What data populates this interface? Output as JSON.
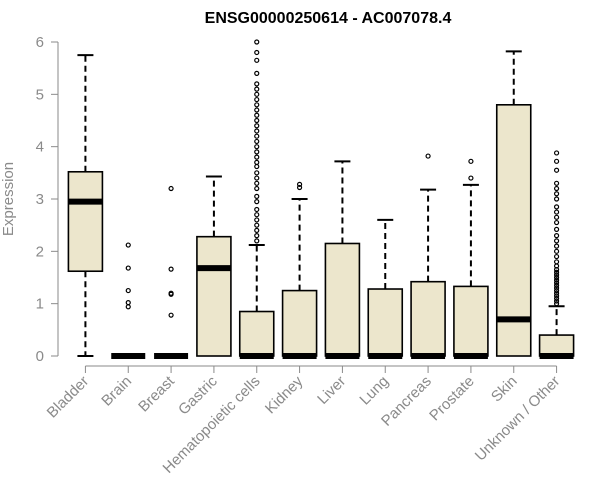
{
  "chart_data": {
    "type": "boxplot",
    "title": "ENSG00000250614 - AC007078.4",
    "xlabel": "",
    "ylabel": "Expression",
    "ylim": [
      0,
      6
    ],
    "yticks": [
      0,
      1,
      2,
      3,
      4,
      5,
      6
    ],
    "grid": false,
    "box_fill": "#ece6cc",
    "categories": [
      "Bladder",
      "Brain",
      "Breast",
      "Gastric",
      "Hematopoietic cells",
      "Kidney",
      "Liver",
      "Lung",
      "Pancreas",
      "Prostate",
      "Skin",
      "Unknown / Other"
    ],
    "boxes": [
      {
        "category": "Bladder",
        "whisker_low": 0.0,
        "q1": 1.62,
        "median": 2.95,
        "q3": 3.52,
        "whisker_high": 5.75,
        "outliers": []
      },
      {
        "category": "Brain",
        "whisker_low": 0.0,
        "q1": 0.0,
        "median": 0.0,
        "q3": 0.0,
        "whisker_high": 0.0,
        "outliers": [
          0.94,
          1.02,
          1.25,
          1.68,
          2.12
        ]
      },
      {
        "category": "Breast",
        "whisker_low": 0.0,
        "q1": 0.0,
        "median": 0.0,
        "q3": 0.0,
        "whisker_high": 0.0,
        "outliers": [
          0.78,
          1.18,
          1.2,
          1.66,
          3.2
        ]
      },
      {
        "category": "Gastric",
        "whisker_low": 0.0,
        "q1": 0.0,
        "median": 1.68,
        "q3": 2.28,
        "whisker_high": 3.43,
        "outliers": []
      },
      {
        "category": "Hematopoietic cells",
        "whisker_low": 0.0,
        "q1": 0.0,
        "median": 0.0,
        "q3": 0.85,
        "whisker_high": 2.12,
        "outliers": [
          2.2,
          2.3,
          2.4,
          2.5,
          2.6,
          2.7,
          2.8,
          2.95,
          3.05,
          3.2,
          3.3,
          3.4,
          3.5,
          3.62,
          3.7,
          3.8,
          3.9,
          4.0,
          4.1,
          4.2,
          4.3,
          4.4,
          4.5,
          4.6,
          4.7,
          4.8,
          4.9,
          5.0,
          5.1,
          5.2,
          5.4,
          5.65,
          5.8,
          6.0
        ]
      },
      {
        "category": "Kidney",
        "whisker_low": 0.0,
        "q1": 0.0,
        "median": 0.0,
        "q3": 1.25,
        "whisker_high": 3.0,
        "outliers": [
          3.22,
          3.28
        ]
      },
      {
        "category": "Liver",
        "whisker_low": 0.0,
        "q1": 0.0,
        "median": 0.0,
        "q3": 2.15,
        "whisker_high": 3.72,
        "outliers": []
      },
      {
        "category": "Lung",
        "whisker_low": 0.0,
        "q1": 0.0,
        "median": 0.0,
        "q3": 1.28,
        "whisker_high": 2.6,
        "outliers": []
      },
      {
        "category": "Pancreas",
        "whisker_low": 0.0,
        "q1": 0.0,
        "median": 0.0,
        "q3": 1.42,
        "whisker_high": 3.18,
        "outliers": [
          3.82
        ]
      },
      {
        "category": "Prostate",
        "whisker_low": 0.0,
        "q1": 0.0,
        "median": 0.0,
        "q3": 1.33,
        "whisker_high": 3.27,
        "outliers": [
          3.4,
          3.72
        ]
      },
      {
        "category": "Skin",
        "whisker_low": 0.0,
        "q1": 0.0,
        "median": 0.7,
        "q3": 4.8,
        "whisker_high": 5.82,
        "outliers": []
      },
      {
        "category": "Unknown / Other",
        "whisker_low": 0.0,
        "q1": 0.0,
        "median": 0.0,
        "q3": 0.4,
        "whisker_high": 0.95,
        "outliers": [
          1.0,
          1.05,
          1.1,
          1.15,
          1.2,
          1.25,
          1.3,
          1.35,
          1.4,
          1.45,
          1.5,
          1.55,
          1.6,
          1.65,
          1.72,
          1.8,
          1.9,
          2.0,
          2.1,
          2.2,
          2.3,
          2.42,
          2.55,
          2.65,
          2.75,
          2.85,
          3.0,
          3.1,
          3.2,
          3.3,
          3.55,
          3.72,
          3.88
        ]
      }
    ]
  }
}
